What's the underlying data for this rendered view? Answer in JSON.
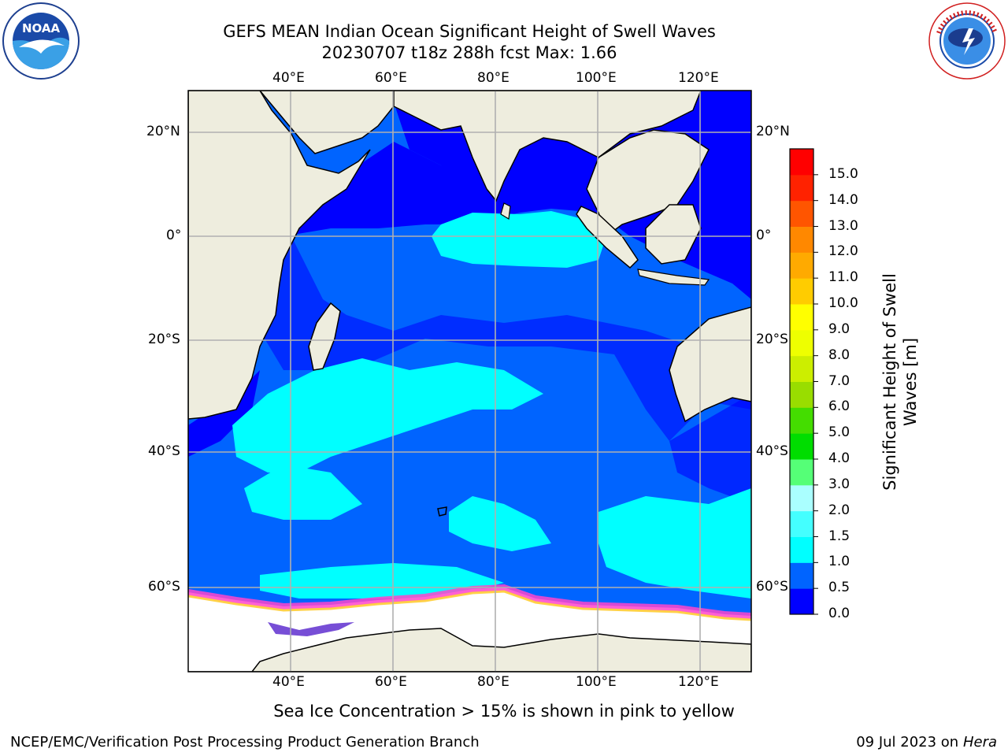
{
  "header": {
    "title_line1": "GEFS MEAN Indian Ocean Significant Height of Swell Waves",
    "title_line2": "20230707 t18z 288h fcst   Max: 1.66"
  },
  "logos": {
    "noaa": {
      "text": "NOAA",
      "ring_text": "NATIONAL OCEANIC AND ATMOSPHERIC ADMINISTRATION · U.S. DEPARTMENT OF COMMERCE"
    },
    "nws": {
      "ring_text": "NATIONAL WEATHER SERVICE"
    }
  },
  "map": {
    "lon_ticks": [
      "40°E",
      "60°E",
      "80°E",
      "100°E",
      "120°E"
    ],
    "lat_ticks": [
      "20°N",
      "0°",
      "20°S",
      "40°S",
      "60°S"
    ],
    "colors": {
      "land": "#eeedde",
      "ice_bg": "#ffffff",
      "grid": "#b0b0b0"
    }
  },
  "colorbar": {
    "label_line1": "Significant Height of Swell",
    "label_line2": "Waves [m]",
    "ticks": [
      "0.0",
      "0.5",
      "1.0",
      "1.5",
      "2.0",
      "3.0",
      "4.0",
      "5.0",
      "6.0",
      "7.0",
      "8.0",
      "9.0",
      "10.0",
      "11.0",
      "12.0",
      "13.0",
      "14.0",
      "15.0"
    ],
    "colors": [
      "#0000ff",
      "#0064ff",
      "#00ffff",
      "#44ffff",
      "#aaffff",
      "#55ff77",
      "#00dd00",
      "#44dd00",
      "#99dd00",
      "#ccee00",
      "#eeff00",
      "#ffff00",
      "#ffcc00",
      "#ffaa00",
      "#ff8800",
      "#ff5500",
      "#ff2200",
      "#ff0000"
    ]
  },
  "footer": {
    "caption": "Sea Ice Concentration > 15% is shown in pink to yellow",
    "branch": "NCEP/EMC/Verification Post Processing Product Generation Branch",
    "date_prefix": "09 Jul 2023 on ",
    "host": "Hera"
  }
}
